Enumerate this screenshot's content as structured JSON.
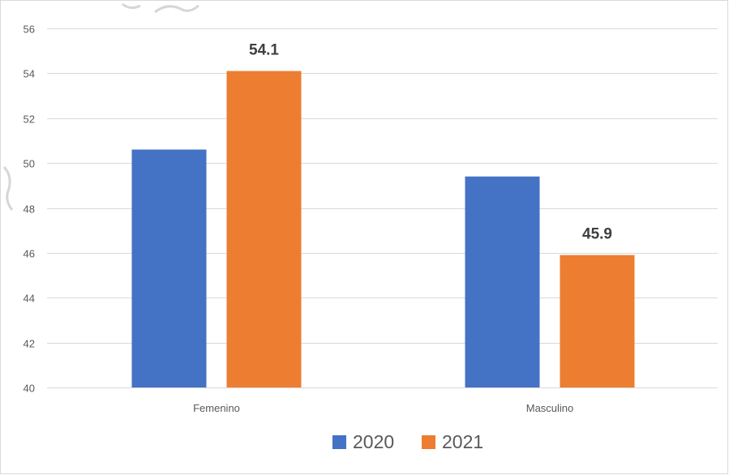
{
  "chart_data": {
    "type": "bar",
    "categories": [
      "Femenino",
      "Masculino"
    ],
    "series": [
      {
        "name": "2020",
        "values": [
          50.6,
          49.4
        ],
        "color": "#4472C4",
        "data_labels": [
          null,
          null
        ]
      },
      {
        "name": "2021",
        "values": [
          54.1,
          45.9
        ],
        "color": "#ED7D31",
        "data_labels": [
          "54.1",
          "45.9"
        ]
      }
    ],
    "title": "",
    "xlabel": "",
    "ylabel": "",
    "ylim": [
      40,
      56
    ],
    "yticks": [
      40,
      42,
      44,
      46,
      48,
      50,
      52,
      54,
      56
    ],
    "grid": true,
    "legend": "bottom",
    "gridline_color": "#d9d9d9",
    "axis_text_color": "#595959"
  }
}
